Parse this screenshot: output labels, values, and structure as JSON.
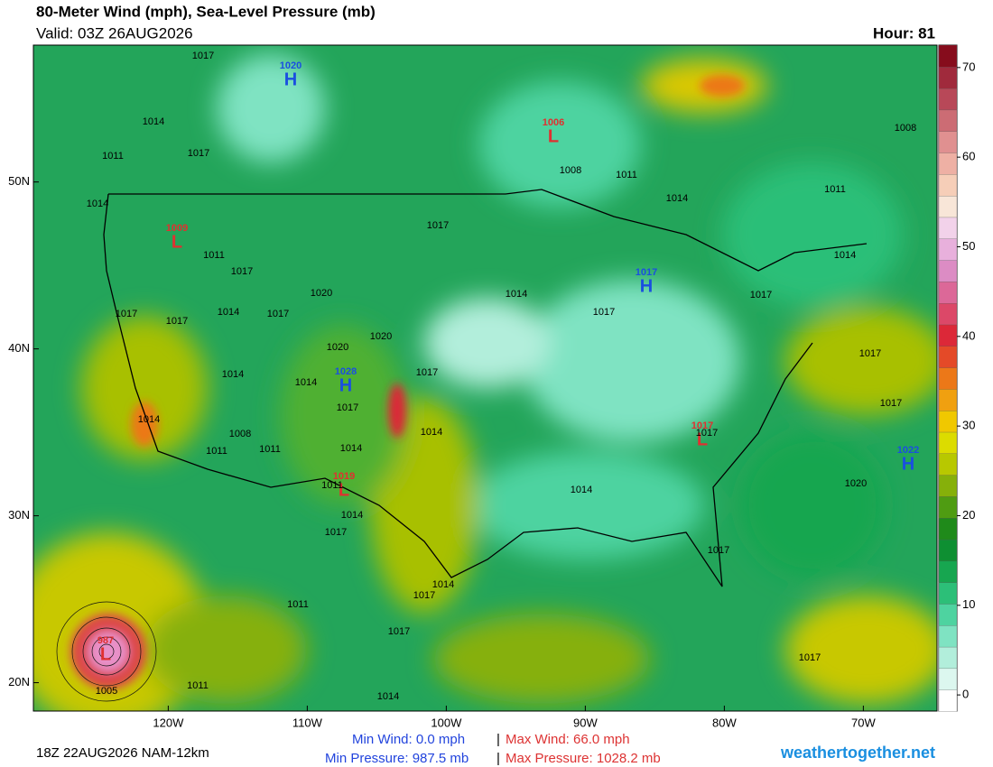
{
  "header": {
    "title": "80-Meter Wind (mph), Sea-Level Pressure (mb)",
    "valid": "Valid: 03Z 26AUG2026",
    "hour": "Hour: 81"
  },
  "map": {
    "lon_ticks": [
      {
        "value": -120,
        "label": "120W"
      },
      {
        "value": -110,
        "label": "110W"
      },
      {
        "value": -100,
        "label": "100W"
      },
      {
        "value": -90,
        "label": "90W"
      },
      {
        "value": -80,
        "label": "80W"
      },
      {
        "value": -70,
        "label": "70W"
      }
    ],
    "lat_ticks": [
      {
        "value": 50,
        "label": "50N"
      },
      {
        "value": 40,
        "label": "40N"
      },
      {
        "value": 30,
        "label": "30N"
      },
      {
        "value": 20,
        "label": "20N"
      }
    ],
    "xlim": [
      -129.7,
      -64.7
    ],
    "ylim": [
      18.3,
      58.2
    ],
    "centers": [
      {
        "pressure": "1020",
        "symbol": "H"
      },
      {
        "pressure": "1006",
        "symbol": "L"
      },
      {
        "pressure": "1009",
        "symbol": "L"
      },
      {
        "pressure": "1017",
        "symbol": "H"
      },
      {
        "pressure": "1028",
        "symbol": "H"
      },
      {
        "pressure": "1017",
        "symbol": "L"
      },
      {
        "pressure": "1022",
        "symbol": "H"
      },
      {
        "pressure": "1019",
        "symbol": "L"
      },
      {
        "pressure": "987",
        "symbol": "L"
      }
    ],
    "isobar_labels": [
      "1017",
      "1014",
      "1017",
      "1011",
      "1014",
      "1008",
      "1011",
      "1014",
      "1011",
      "1008",
      "1011",
      "1017",
      "1017",
      "1020",
      "1014",
      "1017",
      "1014",
      "1017",
      "1017",
      "1014",
      "1017",
      "1020",
      "1020",
      "1017",
      "1017",
      "1014",
      "1014",
      "1017",
      "1014",
      "1008",
      "1011",
      "1011",
      "1014",
      "1014",
      "1017",
      "1017",
      "1017",
      "1020",
      "1011",
      "1014",
      "1014",
      "1017",
      "1017",
      "1011",
      "1014",
      "1017",
      "1017",
      "1014",
      "1017",
      "1005",
      "1011"
    ]
  },
  "colorbar": {
    "ticks": [
      0,
      10,
      20,
      30,
      40,
      50,
      60,
      70
    ],
    "lim": [
      -1.8,
      72.5
    ],
    "colors": [
      "#ffffff",
      "#dcf7ef",
      "#b2eedb",
      "#7fe3c2",
      "#4ed3a0",
      "#2cbf78",
      "#17a650",
      "#0e8f32",
      "#1f8a1a",
      "#4f9c12",
      "#86b00a",
      "#b8c800",
      "#dcdc00",
      "#f0c800",
      "#f0a010",
      "#ec7818",
      "#e44a28",
      "#dc2838",
      "#dc4868",
      "#dc6898",
      "#dc8cc4",
      "#e8b0dc",
      "#f2d2ea",
      "#f8e6d8",
      "#f6ceb8",
      "#eeb0a4",
      "#e09090",
      "#cc6c74",
      "#b84858",
      "#a02a3c",
      "#860c1c"
    ]
  },
  "footer": {
    "run": "18Z 22AUG2026 NAM-12km",
    "min_wind": "Min Wind:   0.0 mph",
    "separator": "|",
    "max_wind": "Max Wind: 66.0 mph",
    "min_pressure": "Min Pressure: 987.5 mb",
    "max_pressure": "Max Pressure: 1028.2 mb",
    "site": "weathertogether.net"
  }
}
